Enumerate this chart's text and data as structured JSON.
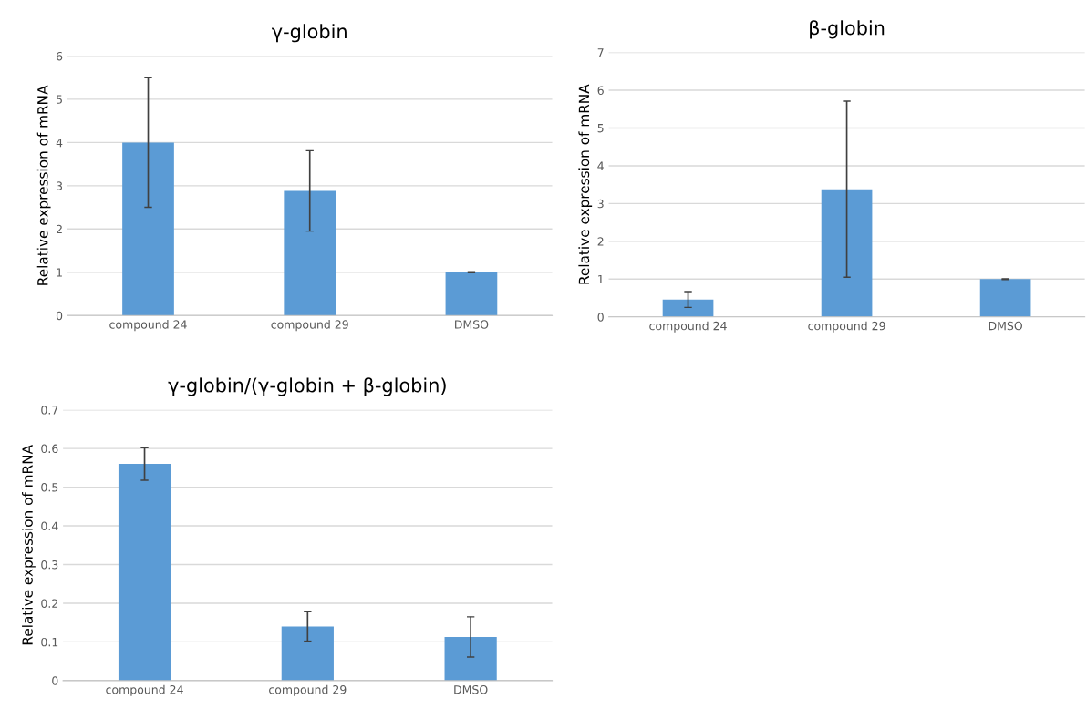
{
  "chart_data": [
    {
      "type": "bar",
      "title": "γ-globin",
      "ylabel": "Relative expression of mRNA",
      "categories": [
        "compound 24",
        "compound 29",
        "DMSO"
      ],
      "values": [
        4.0,
        2.88,
        1.0
      ],
      "errors": [
        1.5,
        0.93,
        0.01
      ],
      "color": "#5b9bd5",
      "ylim": [
        0,
        6
      ],
      "yticks": [
        0,
        1,
        2,
        3,
        4,
        5,
        6
      ],
      "grid": "y"
    },
    {
      "type": "bar",
      "title": "β-globin",
      "ylabel": "Relative expression of mRNA",
      "categories": [
        "compound 24",
        "compound 29",
        "DMSO"
      ],
      "values": [
        0.46,
        3.38,
        1.0
      ],
      "errors": [
        0.21,
        2.33,
        0.01
      ],
      "color": "#5b9bd5",
      "ylim": [
        0,
        7
      ],
      "yticks": [
        0,
        1,
        2,
        3,
        4,
        5,
        6,
        7
      ],
      "grid": "y"
    },
    {
      "type": "bar",
      "title": "γ-globin/(γ-globin + β-globin)",
      "ylabel": "Relative expression of mRNA",
      "categories": [
        "compound 24",
        "compound 29",
        "DMSO"
      ],
      "values": [
        0.56,
        0.14,
        0.113
      ],
      "errors": [
        0.042,
        0.038,
        0.052
      ],
      "color": "#5b9bd5",
      "ylim": [
        0,
        0.7
      ],
      "yticks": [
        0,
        0.1,
        0.2,
        0.3,
        0.4,
        0.5,
        0.6,
        0.7
      ],
      "grid": "y"
    }
  ]
}
